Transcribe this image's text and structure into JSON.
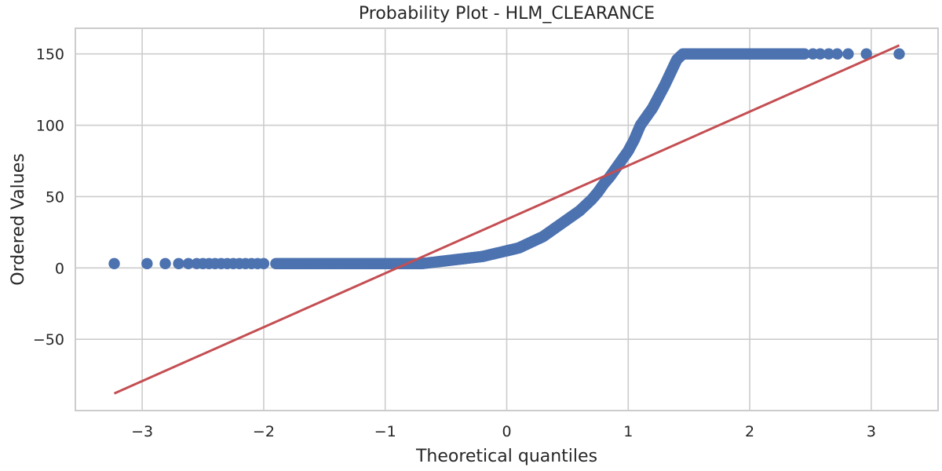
{
  "chart_data": {
    "type": "scatter",
    "title": "Probability Plot - HLM_CLEARANCE",
    "xlabel": "Theoretical quantiles",
    "ylabel": "Ordered Values",
    "xlim": [
      -3.55,
      3.55
    ],
    "ylim": [
      -100,
      168
    ],
    "xticks": [
      -3,
      -2,
      -1,
      0,
      1,
      2,
      3
    ],
    "xtick_labels": [
      "−3",
      "−2",
      "−1",
      "0",
      "1",
      "2",
      "3"
    ],
    "yticks": [
      -50,
      0,
      50,
      100,
      150
    ],
    "ytick_labels": [
      "−50",
      "0",
      "50",
      "100",
      "150"
    ],
    "grid": true,
    "series": [
      {
        "kind": "points",
        "color": "#4c72b0",
        "x": [
          -3.23,
          -2.96,
          -2.81,
          -2.7,
          -2.62,
          -2.55,
          -2.5,
          -2.45,
          -2.4,
          -2.35,
          -2.3,
          -2.25,
          -2.2,
          -2.15,
          -2.1,
          -2.05,
          -2.0,
          -1.9,
          -1.8,
          -1.7,
          -1.6,
          -1.5,
          -1.4,
          -1.3,
          -1.2,
          -1.1,
          -1.0,
          -0.9,
          -0.8,
          -0.7,
          -0.6,
          -0.5,
          -0.4,
          -0.3,
          -0.2,
          -0.1,
          0.0,
          0.1,
          0.2,
          0.3,
          0.4,
          0.5,
          0.6,
          0.7,
          0.75,
          0.8,
          0.85,
          0.9,
          0.95,
          1.0,
          1.05,
          1.1,
          1.15,
          1.2,
          1.25,
          1.3,
          1.35,
          1.4,
          1.45,
          1.55,
          1.65,
          1.75,
          1.85,
          1.95,
          2.05,
          2.15,
          2.25,
          2.35,
          2.45,
          2.52,
          2.58,
          2.65,
          2.72,
          2.81,
          2.96,
          3.23
        ],
        "y": [
          3,
          3,
          3,
          3,
          3,
          3,
          3,
          3,
          3,
          3,
          3,
          3,
          3,
          3,
          3,
          3,
          3,
          3,
          3,
          3,
          3,
          3,
          3,
          3,
          3,
          3,
          3,
          3,
          3,
          3,
          4,
          5,
          6,
          7,
          8,
          10,
          12,
          14,
          18,
          22,
          28,
          34,
          40,
          48,
          53,
          59,
          64,
          70,
          76,
          82,
          90,
          100,
          106,
          112,
          120,
          128,
          137,
          146,
          150,
          150,
          150,
          150,
          150,
          150,
          150,
          150,
          150,
          150,
          150,
          150,
          150,
          150,
          150,
          150,
          150,
          150
        ]
      },
      {
        "kind": "fit-line",
        "color": "#c44e52",
        "x": [
          -3.23,
          3.23
        ],
        "y": [
          -88,
          156
        ]
      }
    ]
  }
}
